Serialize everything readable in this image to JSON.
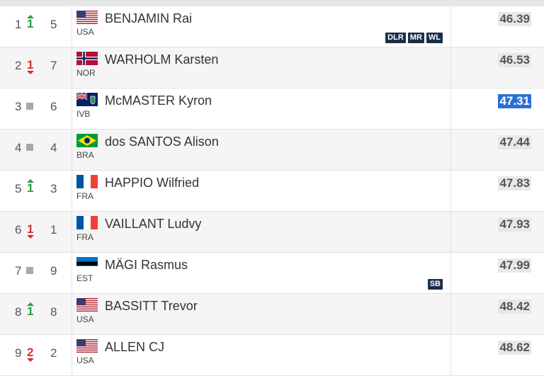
{
  "colors": {
    "up": "#2e9e3e",
    "down": "#d0332d",
    "same": "#a9a9a9",
    "badge": "#1a2e4a",
    "highlight": "#2a6fd6"
  },
  "rows": [
    {
      "rank": "1",
      "change": {
        "dir": "up",
        "value": "1"
      },
      "lane": "5",
      "country": "USA",
      "flag": "usa",
      "name": "BENJAMIN Rai",
      "badges": [
        "DLR",
        "MR",
        "WL"
      ],
      "mark": "46.39",
      "highlight": false
    },
    {
      "rank": "2",
      "change": {
        "dir": "down",
        "value": "1"
      },
      "lane": "7",
      "country": "NOR",
      "flag": "nor",
      "name": "WARHOLM Karsten",
      "badges": [],
      "mark": "46.53",
      "highlight": false
    },
    {
      "rank": "3",
      "change": {
        "dir": "same",
        "value": ""
      },
      "lane": "6",
      "country": "IVB",
      "flag": "ivb",
      "name": "McMASTER Kyron",
      "badges": [],
      "mark": "47.31",
      "highlight": true
    },
    {
      "rank": "4",
      "change": {
        "dir": "same",
        "value": ""
      },
      "lane": "4",
      "country": "BRA",
      "flag": "bra",
      "name": "dos SANTOS Alison",
      "badges": [],
      "mark": "47.44",
      "highlight": false
    },
    {
      "rank": "5",
      "change": {
        "dir": "up",
        "value": "1"
      },
      "lane": "3",
      "country": "FRA",
      "flag": "fra",
      "name": "HAPPIO Wilfried",
      "badges": [],
      "mark": "47.83",
      "highlight": false
    },
    {
      "rank": "6",
      "change": {
        "dir": "down",
        "value": "1"
      },
      "lane": "1",
      "country": "FRA",
      "flag": "fra",
      "name": "VAILLANT Ludvy",
      "badges": [],
      "mark": "47.93",
      "highlight": false
    },
    {
      "rank": "7",
      "change": {
        "dir": "same",
        "value": ""
      },
      "lane": "9",
      "country": "EST",
      "flag": "est",
      "name": "MÄGI Rasmus",
      "badges": [
        "SB"
      ],
      "mark": "47.99",
      "highlight": false
    },
    {
      "rank": "8",
      "change": {
        "dir": "up",
        "value": "1"
      },
      "lane": "8",
      "country": "USA",
      "flag": "usa",
      "name": "BASSITT Trevor",
      "badges": [],
      "mark": "48.42",
      "highlight": false
    },
    {
      "rank": "9",
      "change": {
        "dir": "down",
        "value": "2"
      },
      "lane": "2",
      "country": "USA",
      "flag": "usa",
      "name": "ALLEN CJ",
      "badges": [],
      "mark": "48.62",
      "highlight": false
    }
  ]
}
